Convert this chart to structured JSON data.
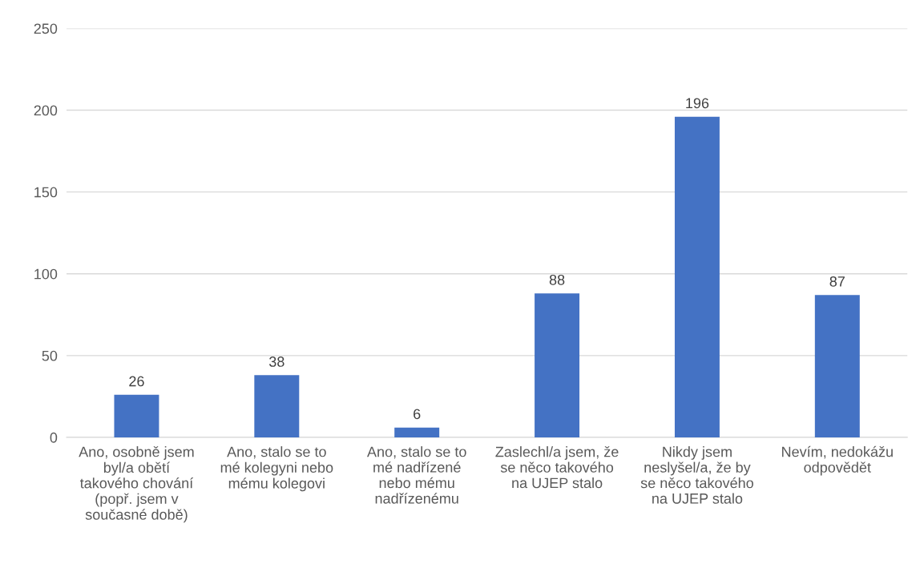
{
  "chart_data": {
    "type": "bar",
    "categories": [
      "Ano, osobně jsem\nbyl/a obětí\ntakového chování\n(popř. jsem v\nsoučasné době)",
      "Ano, stalo se to\nmé kolegyni nebo\nmému kolegovi",
      "Ano, stalo se to\nmé nadřízené\nnebo mému\nnadřízenému",
      "Zaslechl/a jsem, že\nse něco takového\nna UJEP stalo",
      "Nikdy jsem\nneslyšel/a, že by\nse něco takového\nna UJEP stalo",
      "Nevím, nedokážu\nodpovědět"
    ],
    "values": [
      26,
      38,
      6,
      88,
      196,
      87
    ],
    "color": "#4472c4",
    "ylim": [
      0,
      250
    ],
    "yticks": [
      0,
      50,
      100,
      150,
      200,
      250
    ],
    "grid": "y",
    "data_labels": true
  }
}
